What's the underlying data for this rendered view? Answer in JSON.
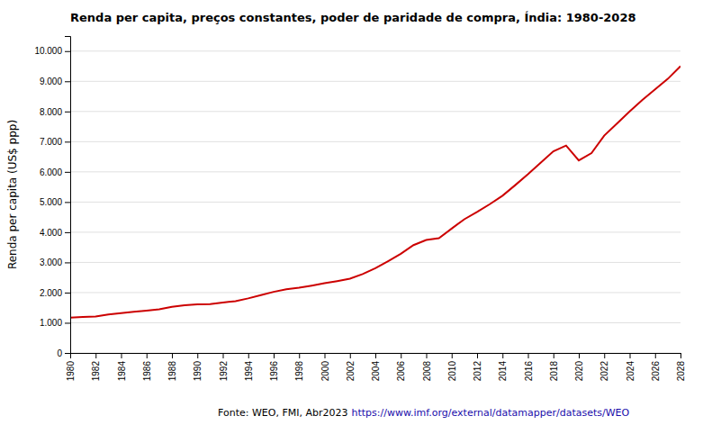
{
  "chart_data": {
    "type": "line",
    "title": "Renda per capita, preços constantes, poder de paridade de compra, Índia: 1980-2028",
    "y_label": "Renda per capita (US$ ppp)",
    "source": "Fonte: WEO, FMI, Abr2023",
    "source_url": "https://www.imf.org/external/datamapper/datasets/WEO",
    "x": [
      1980,
      1981,
      1982,
      1983,
      1984,
      1985,
      1986,
      1987,
      1988,
      1989,
      1990,
      1991,
      1992,
      1993,
      1994,
      1995,
      1996,
      1997,
      1998,
      1999,
      2000,
      2001,
      2002,
      2003,
      2004,
      2005,
      2006,
      2007,
      2008,
      2009,
      2010,
      2011,
      2012,
      2013,
      2014,
      2015,
      2016,
      2017,
      2018,
      2019,
      2020,
      2021,
      2022,
      2023,
      2024,
      2025,
      2026,
      2027,
      2028
    ],
    "values": [
      1168,
      1190,
      1210,
      1275,
      1320,
      1368,
      1402,
      1445,
      1530,
      1582,
      1610,
      1618,
      1672,
      1718,
      1808,
      1918,
      2025,
      2112,
      2162,
      2232,
      2310,
      2382,
      2462,
      2615,
      2808,
      3042,
      3285,
      3572,
      3745,
      3800,
      4120,
      4430,
      4670,
      4930,
      5210,
      5560,
      5920,
      6300,
      6680,
      6870,
      6380,
      6620,
      7200,
      7600,
      8000,
      8380,
      8730,
      9080,
      9500
    ],
    "color": "#cc0000",
    "xlim": [
      1980,
      2028
    ],
    "xticks": [
      1980,
      1982,
      1984,
      1986,
      1988,
      1990,
      1992,
      1994,
      1996,
      1998,
      2000,
      2002,
      2004,
      2006,
      2008,
      2010,
      2012,
      2014,
      2016,
      2018,
      2020,
      2022,
      2024,
      2026,
      2028
    ],
    "ylim": [
      0,
      10500
    ],
    "yticks": [
      0,
      {
        "value": 1000,
        "label": "1.000"
      },
      {
        "value": 2000,
        "label": "2.000"
      },
      {
        "value": 3000,
        "label": "3.000"
      },
      {
        "value": 4000,
        "label": "4.000"
      },
      {
        "value": 5000,
        "label": "5.000"
      },
      {
        "value": 6000,
        "label": "6.000"
      },
      {
        "value": 7000,
        "label": "7.000"
      },
      {
        "value": 8000,
        "label": "8.000"
      },
      {
        "value": 9000,
        "label": "9.000"
      },
      {
        "value": 10000,
        "label": "10.000"
      }
    ],
    "grid": true
  }
}
